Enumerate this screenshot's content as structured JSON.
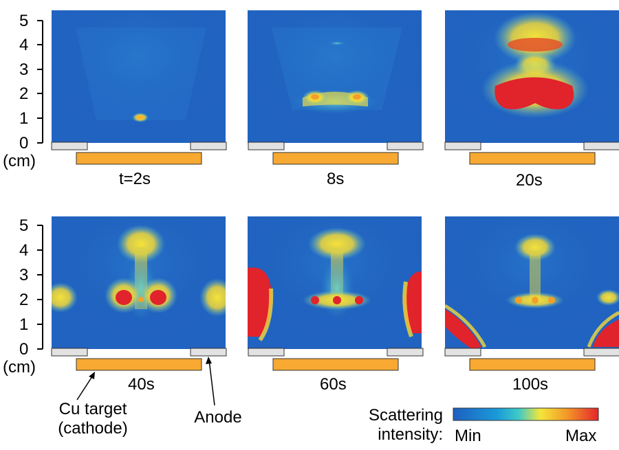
{
  "panels": [
    {
      "time_label": "t=2s"
    },
    {
      "time_label": "8s"
    },
    {
      "time_label": "20s"
    },
    {
      "time_label": "40s"
    },
    {
      "time_label": "60s"
    },
    {
      "time_label": "100s"
    }
  ],
  "axis": {
    "ticks": [
      "0",
      "1",
      "2",
      "3",
      "4",
      "5"
    ],
    "unit": "(cm)"
  },
  "annotations": {
    "cathode": "Cu target\n(cathode)",
    "anode": "Anode"
  },
  "colorbar": {
    "title": "Scattering\nintensity:",
    "min_label": "Min",
    "max_label": "Max",
    "colors": [
      "#1e5fc0",
      "#1a9ad9",
      "#3fc9c8",
      "#f3e63a",
      "#f39a28",
      "#e5252b"
    ]
  },
  "colors": {
    "background": "#2163c0",
    "electrode_target": "#f8a932",
    "electrode_anode": "#e2e2e2"
  }
}
